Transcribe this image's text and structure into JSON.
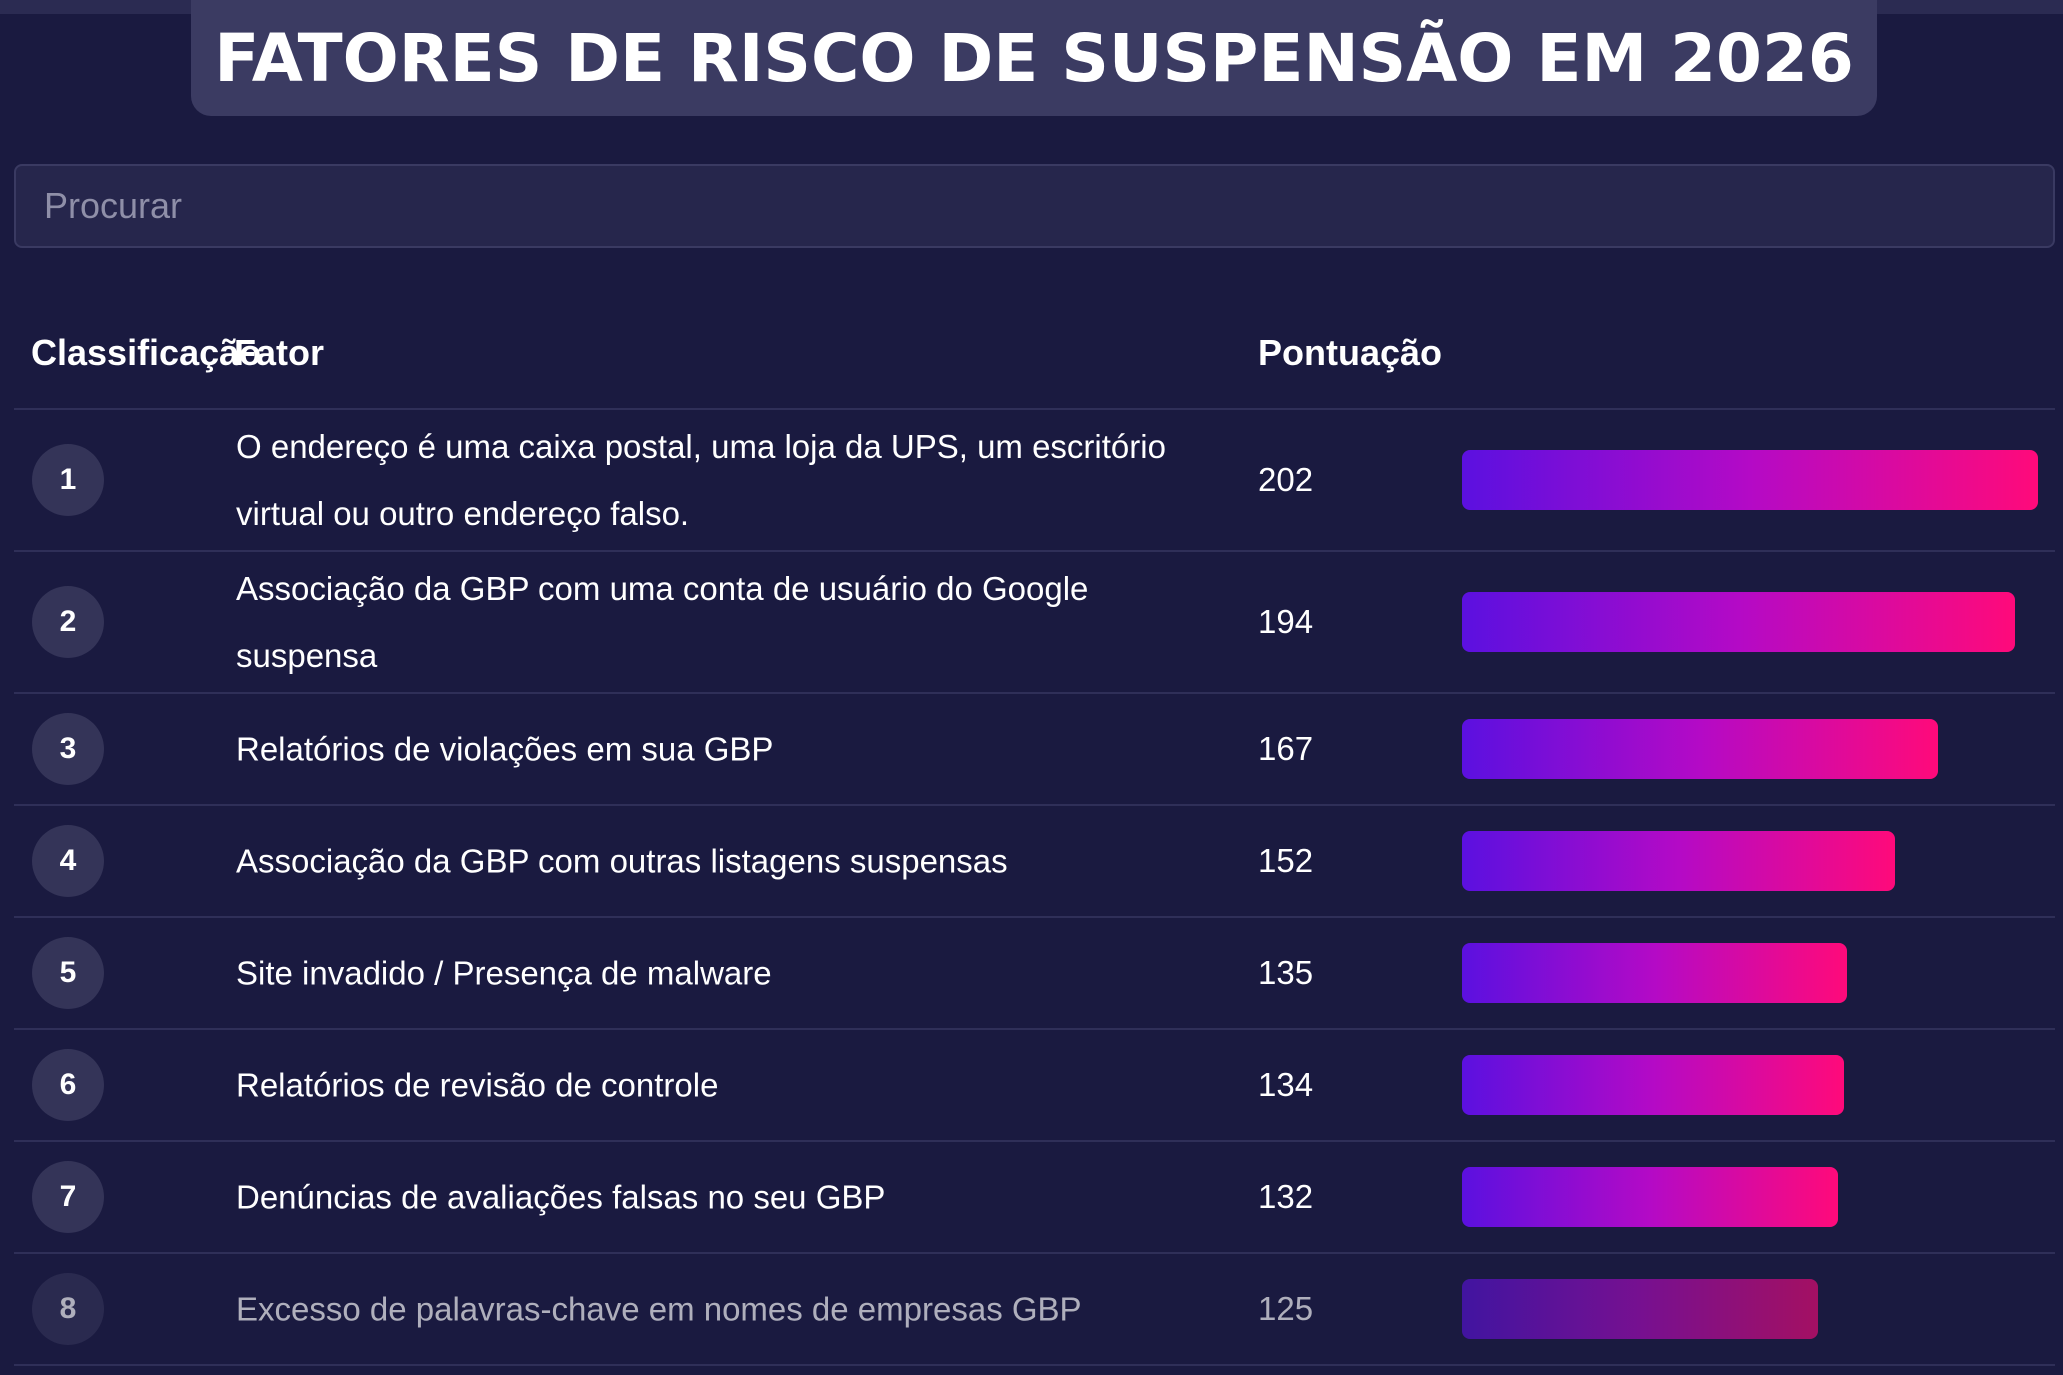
{
  "title": "FATORES DE RISCO DE SUSPENSÃO EM 2026",
  "search": {
    "placeholder": "Procurar"
  },
  "table": {
    "headers": {
      "rank": "Classificação",
      "factor": "Fator",
      "score": "Pontuação"
    },
    "max_score": 202,
    "rows": [
      {
        "rank": "1",
        "factor": "O endereço é uma caixa postal, uma loja da UPS, um escritório virtual ou outro endereço falso.",
        "score": "202"
      },
      {
        "rank": "2",
        "factor": "Associação da GBP com uma conta de usuário do Google suspensa",
        "score": "194"
      },
      {
        "rank": "3",
        "factor": "Relatórios de violações em sua GBP",
        "score": "167"
      },
      {
        "rank": "4",
        "factor": "Associação da GBP com outras listagens suspensas",
        "score": "152"
      },
      {
        "rank": "5",
        "factor": "Site invadido / Presença de malware",
        "score": "135"
      },
      {
        "rank": "6",
        "factor": "Relatórios de revisão de controle",
        "score": "134"
      },
      {
        "rank": "7",
        "factor": "Denúncias de avaliações falsas no seu GBP",
        "score": "132"
      },
      {
        "rank": "8",
        "factor": "Excesso de palavras-chave em nomes de empresas GBP",
        "score": "125"
      }
    ]
  },
  "colors": {
    "background": "#1a1a40",
    "bar_start": "#5b10e0",
    "bar_end": "#ff0a7a"
  }
}
